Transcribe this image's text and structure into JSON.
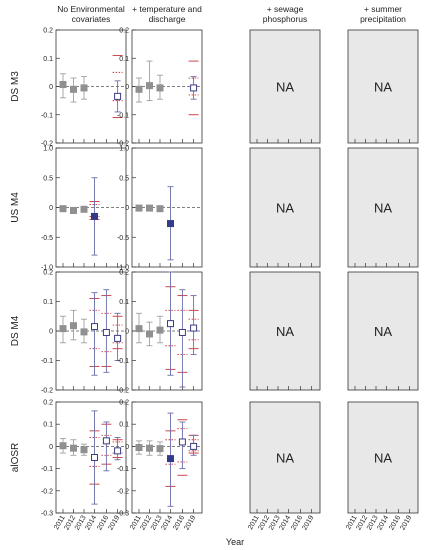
{
  "figure": {
    "column_titles": [
      [
        "No Environmental",
        "covariates"
      ],
      [
        "+ temperature and",
        "discharge"
      ],
      [
        "+ sewage",
        "phosphorus"
      ],
      [
        "+ summer",
        "precipitation"
      ]
    ],
    "row_labels": [
      "DS M3",
      "US M4",
      "DS M4",
      "alOSR"
    ],
    "x_axis_label": "Year",
    "na_text": "NA",
    "years": [
      "2011",
      "2012",
      "2013",
      "2014",
      "2016",
      "2019"
    ]
  },
  "colors": {
    "filled_marker": "#909090",
    "open_marker_stroke": "#3a3d80",
    "highlight_marker": "#333a88",
    "grey_whisker": "#a0a0a0",
    "blue_whisker": "#6a6da8",
    "red_dots": "#c8323c",
    "na_panel_fill": "#e8e8e8",
    "zero_line": "#555555"
  },
  "chart_data": [
    {
      "type": "scatter",
      "row": "DS M3",
      "column": "No Environmental covariates",
      "ylim": [
        -0.2,
        0.2
      ],
      "yticks": [
        "0.2",
        "0.1",
        "0",
        "-0.1",
        "-0.2"
      ],
      "ytick_values": [
        0.2,
        0.1,
        0,
        -0.1,
        -0.2
      ],
      "points": [
        {
          "year": "2011",
          "value": 0.007,
          "low": -0.04,
          "high": 0.045,
          "marker": "filled"
        },
        {
          "year": "2012",
          "value": -0.01,
          "low": -0.055,
          "high": 0.03,
          "marker": "filled"
        },
        {
          "year": "2013",
          "value": -0.005,
          "low": -0.045,
          "high": 0.035,
          "marker": "filled"
        },
        {
          "year": "2019",
          "value": -0.035,
          "low": -0.09,
          "high": 0.02,
          "marker": "open",
          "red_low": -0.11,
          "red_high": 0.11,
          "red_mid_low": -0.05,
          "red_mid_high": 0.05
        }
      ]
    },
    {
      "type": "scatter",
      "row": "DS M3",
      "column": "+ temperature and discharge",
      "ylim": [
        -0.2,
        0.2
      ],
      "yticks": [
        "0.2",
        "0.1",
        "0",
        "-0.1",
        "-0.2"
      ],
      "ytick_values": [
        0.2,
        0.1,
        0,
        -0.1,
        -0.2
      ],
      "points": [
        {
          "year": "2011",
          "value": -0.01,
          "low": -0.055,
          "high": 0.03,
          "marker": "filled"
        },
        {
          "year": "2012",
          "value": 0.003,
          "low": -0.05,
          "high": 0.09,
          "marker": "filled"
        },
        {
          "year": "2013",
          "value": -0.005,
          "low": -0.045,
          "high": 0.04,
          "marker": "filled"
        },
        {
          "year": "2019",
          "value": -0.005,
          "low": -0.045,
          "high": 0.035,
          "marker": "open",
          "red_low": -0.1,
          "red_high": 0.09,
          "red_mid_low": -0.03,
          "red_mid_high": 0.03
        }
      ]
    },
    {
      "type": "scatter",
      "row": "US M4",
      "column": "No Environmental covariates",
      "ylim": [
        -1.0,
        1.0
      ],
      "yticks": [
        "1.0",
        "0.5",
        "0",
        "-0.5",
        "-1.0"
      ],
      "ytick_values": [
        1.0,
        0.5,
        0,
        -0.5,
        -1.0
      ],
      "points": [
        {
          "year": "2011",
          "value": -0.02,
          "low": -0.02,
          "high": -0.02,
          "marker": "filled"
        },
        {
          "year": "2012",
          "value": -0.05,
          "low": -0.05,
          "high": -0.05,
          "marker": "filled"
        },
        {
          "year": "2013",
          "value": -0.03,
          "low": -0.03,
          "high": -0.03,
          "marker": "filled"
        },
        {
          "year": "2014",
          "value": -0.15,
          "low": -0.8,
          "high": 0.5,
          "marker": "highlight",
          "red_low": -0.2,
          "red_high": 0.1,
          "red_mid_low": -0.15,
          "red_mid_high": 0.05
        }
      ]
    },
    {
      "type": "scatter",
      "row": "US M4",
      "column": "+ temperature and discharge",
      "ylim": [
        -1.0,
        1.0
      ],
      "yticks": [
        "1.0",
        "0.5",
        "0",
        "-0.5",
        "-1.0"
      ],
      "ytick_values": [
        1.0,
        0.5,
        0,
        -0.5,
        -1.0
      ],
      "points": [
        {
          "year": "2011",
          "value": -0.01,
          "low": -0.01,
          "high": -0.01,
          "marker": "filled"
        },
        {
          "year": "2012",
          "value": -0.01,
          "low": -0.01,
          "high": -0.01,
          "marker": "filled"
        },
        {
          "year": "2013",
          "value": -0.02,
          "low": -0.02,
          "high": -0.02,
          "marker": "filled"
        },
        {
          "year": "2014",
          "value": -0.27,
          "low": -0.88,
          "high": 0.35,
          "marker": "highlight"
        }
      ]
    },
    {
      "type": "scatter",
      "row": "DS M4",
      "column": "No Environmental covariates",
      "ylim": [
        -0.2,
        0.2
      ],
      "yticks": [
        "0.2",
        "0.1",
        "0",
        "-0.1",
        "-0.2"
      ],
      "ytick_values": [
        0.2,
        0.1,
        0,
        -0.1,
        -0.2
      ],
      "points": [
        {
          "year": "2011",
          "value": 0.008,
          "low": -0.04,
          "high": 0.05,
          "marker": "filled"
        },
        {
          "year": "2012",
          "value": 0.018,
          "low": -0.03,
          "high": 0.07,
          "marker": "filled"
        },
        {
          "year": "2013",
          "value": -0.003,
          "low": -0.04,
          "high": 0.04,
          "marker": "filled"
        },
        {
          "year": "2014",
          "value": 0.015,
          "low": -0.15,
          "high": 0.13,
          "marker": "open",
          "red_low": -0.12,
          "red_high": 0.11,
          "red_mid_low": -0.06,
          "red_mid_high": 0.07
        },
        {
          "year": "2016",
          "value": -0.005,
          "low": -0.14,
          "high": 0.14,
          "marker": "open",
          "red_low": -0.12,
          "red_high": 0.12,
          "red_mid_low": -0.07,
          "red_mid_high": 0.06
        },
        {
          "year": "2019",
          "value": -0.025,
          "low": -0.1,
          "high": 0.06,
          "marker": "open",
          "red_low": -0.06,
          "red_high": 0.05,
          "red_mid_low": -0.04,
          "red_mid_high": 0.02
        }
      ]
    },
    {
      "type": "scatter",
      "row": "DS M4",
      "column": "+ temperature and discharge",
      "ylim": [
        -0.2,
        0.2
      ],
      "yticks": [
        "0.2",
        "0.1",
        "0",
        "-0.1",
        "-0.2"
      ],
      "ytick_values": [
        0.2,
        0.1,
        0,
        -0.1,
        -0.2
      ],
      "points": [
        {
          "year": "2011",
          "value": 0.008,
          "low": -0.04,
          "high": 0.06,
          "marker": "filled"
        },
        {
          "year": "2012",
          "value": -0.01,
          "low": -0.05,
          "high": 0.03,
          "marker": "filled"
        },
        {
          "year": "2013",
          "value": 0.003,
          "low": -0.04,
          "high": 0.05,
          "marker": "filled"
        },
        {
          "year": "2014",
          "value": 0.025,
          "low": -0.15,
          "high": 0.2,
          "marker": "open",
          "red_low": -0.13,
          "red_high": 0.15,
          "red_mid_low": -0.05,
          "red_mid_high": 0.07
        },
        {
          "year": "2016",
          "value": -0.005,
          "low": -0.19,
          "high": 0.14,
          "marker": "open",
          "red_low": -0.14,
          "red_high": 0.12,
          "red_mid_low": -0.08,
          "red_mid_high": 0.07
        },
        {
          "year": "2019",
          "value": 0.01,
          "low": -0.08,
          "high": 0.12,
          "marker": "open",
          "red_low": -0.06,
          "red_high": 0.07,
          "red_mid_low": -0.03,
          "red_mid_high": 0.04
        }
      ]
    },
    {
      "type": "scatter",
      "row": "alOSR",
      "column": "No Environmental covariates",
      "ylim": [
        -0.3,
        0.2
      ],
      "yticks": [
        "0.2",
        "0.1",
        "0",
        "-0.1",
        "-0.2",
        "-0.3"
      ],
      "ytick_values": [
        0.2,
        0.1,
        0,
        -0.1,
        -0.2,
        -0.3
      ],
      "points": [
        {
          "year": "2011",
          "value": 0.003,
          "low": -0.03,
          "high": 0.035,
          "marker": "filled"
        },
        {
          "year": "2012",
          "value": -0.008,
          "low": -0.04,
          "high": 0.03,
          "marker": "filled"
        },
        {
          "year": "2013",
          "value": -0.015,
          "low": -0.04,
          "high": 0.01,
          "marker": "filled"
        },
        {
          "year": "2014",
          "value": -0.05,
          "low": -0.26,
          "high": 0.16,
          "marker": "open",
          "red_low": -0.17,
          "red_high": 0.07,
          "red_mid_low": -0.09,
          "red_mid_high": 0.04
        },
        {
          "year": "2016",
          "value": 0.025,
          "low": -0.11,
          "high": 0.11,
          "marker": "open",
          "red_low": -0.08,
          "red_high": 0.1,
          "red_mid_low": -0.04,
          "red_mid_high": 0.05
        },
        {
          "year": "2019",
          "value": -0.02,
          "low": -0.06,
          "high": 0.04,
          "marker": "open",
          "red_low": -0.05,
          "red_high": 0.03,
          "red_mid_low": -0.03,
          "red_mid_high": 0.02
        }
      ]
    },
    {
      "type": "scatter",
      "row": "alOSR",
      "column": "+ temperature and discharge",
      "ylim": [
        -0.3,
        0.2
      ],
      "yticks": [
        "0.2",
        "0.1",
        "0",
        "-0.1",
        "-0.2",
        "-0.3"
      ],
      "ytick_values": [
        0.2,
        0.1,
        0,
        -0.1,
        -0.2,
        -0.3
      ],
      "points": [
        {
          "year": "2011",
          "value": -0.005,
          "low": -0.035,
          "high": 0.025,
          "marker": "filled"
        },
        {
          "year": "2012",
          "value": -0.008,
          "low": -0.04,
          "high": 0.025,
          "marker": "filled"
        },
        {
          "year": "2013",
          "value": -0.01,
          "low": -0.04,
          "high": 0.02,
          "marker": "filled"
        },
        {
          "year": "2014",
          "value": -0.055,
          "low": -0.27,
          "high": 0.15,
          "marker": "highlight",
          "red_low": -0.18,
          "red_high": 0.07,
          "red_mid_low": -0.08,
          "red_mid_high": 0.03
        },
        {
          "year": "2016",
          "value": 0.02,
          "low": -0.1,
          "high": 0.11,
          "marker": "open",
          "red_low": -0.13,
          "red_high": 0.12,
          "red_mid_low": -0.07,
          "red_mid_high": 0.08
        },
        {
          "year": "2019",
          "value": 0.0,
          "low": -0.04,
          "high": 0.05,
          "marker": "open",
          "red_low": -0.03,
          "red_high": 0.05,
          "red_mid_low": -0.02,
          "red_mid_high": 0.03
        }
      ]
    }
  ]
}
